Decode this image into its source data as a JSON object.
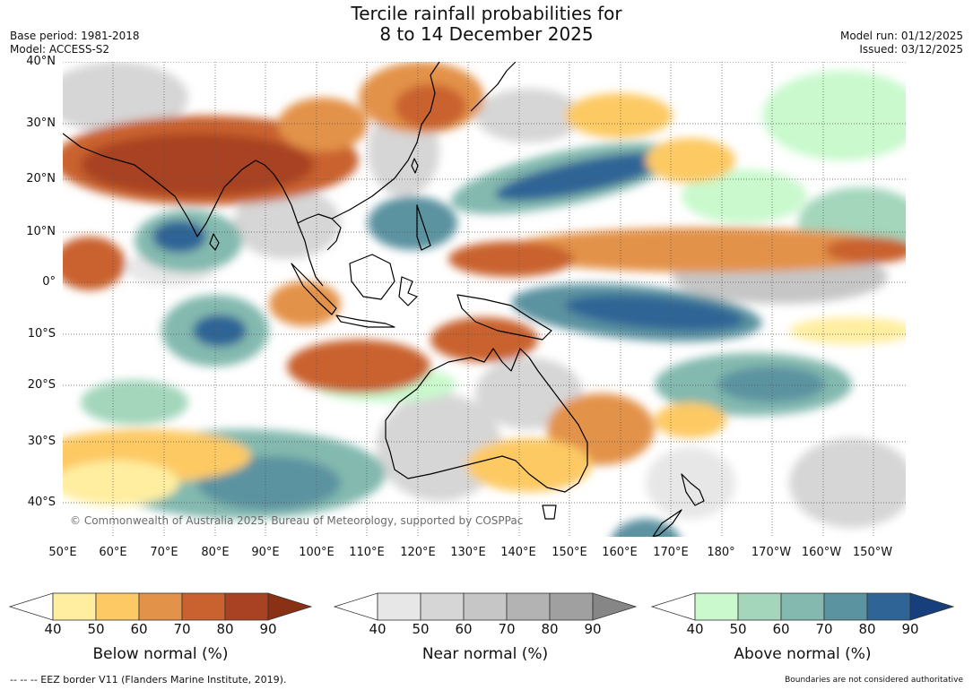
{
  "header": {
    "title_line1": "Tercile rainfall probabilities for",
    "title_line2": "8 to 14 December 2025",
    "base_period": "Base period: 1981-2018",
    "model": "Model: ACCESS-S2",
    "model_run": "Model run: 01/12/2025",
    "issued": "Issued: 03/12/2025"
  },
  "map": {
    "lat_labels": [
      "40°N",
      "30°N",
      "20°N",
      "10°N",
      "0°",
      "10°S",
      "20°S",
      "30°S",
      "40°S"
    ],
    "lon_labels": [
      "50°E",
      "60°E",
      "70°E",
      "80°E",
      "90°E",
      "100°E",
      "110°E",
      "120°E",
      "130°E",
      "140°E",
      "150°E",
      "160°E",
      "170°E",
      "180°",
      "170°W",
      "160°W",
      "150°W"
    ],
    "copyright": "© Commonwealth of Australia 2025, Bureau of Meteorology, supported by COSPPac"
  },
  "legend": {
    "ticks": [
      "40",
      "50",
      "60",
      "70",
      "80",
      "90"
    ],
    "below": {
      "title": "Below normal (%)",
      "colors": [
        "#ffeea0",
        "#fdc964",
        "#e3924a",
        "#c9622f",
        "#a84223",
        "#8a3015"
      ]
    },
    "near": {
      "title": "Near normal (%)",
      "colors": [
        "#e7e7e7",
        "#d6d6d6",
        "#c6c6c6",
        "#b3b3b3",
        "#a0a0a0",
        "#868686"
      ]
    },
    "above": {
      "title": "Above normal (%)",
      "colors": [
        "#c9f9cd",
        "#a3d6bb",
        "#83b9af",
        "#5b93a0",
        "#2f6596",
        "#163f7b"
      ]
    }
  },
  "footer": {
    "eez_note": "--  --  -- EEZ border V11 (Flanders Marine Institute, 2019).",
    "disclaimer": "Boundaries are not considered authoritative"
  }
}
